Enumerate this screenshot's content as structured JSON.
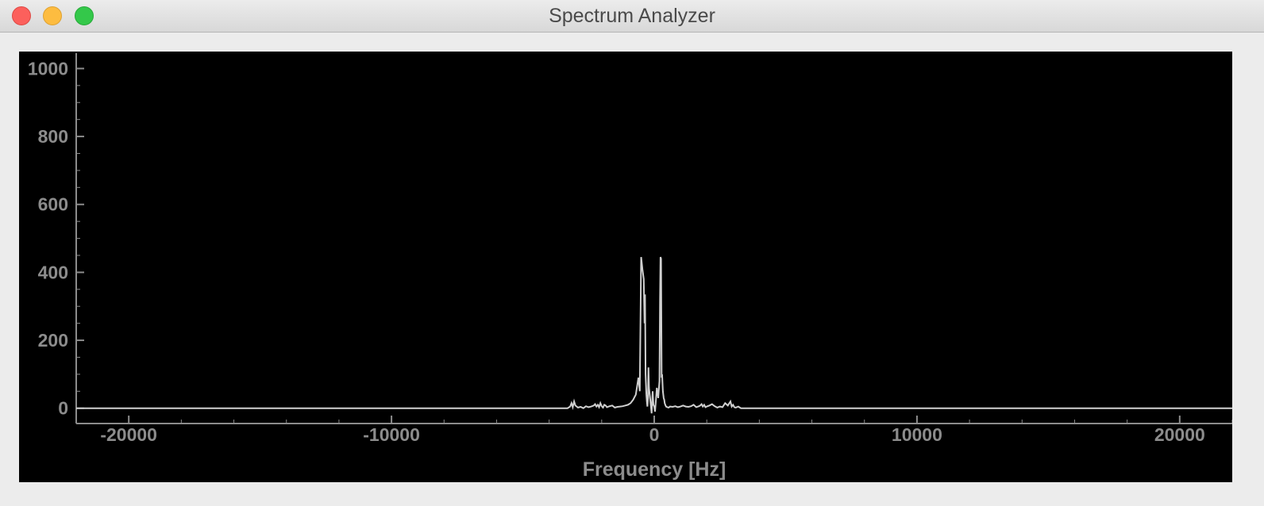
{
  "window": {
    "title": "Spectrum Analyzer"
  },
  "chart_data": {
    "type": "line",
    "xlabel": "Frequency [Hz]",
    "ylabel": "",
    "xlim": [
      -22000,
      22000
    ],
    "ylim": [
      -45,
      1050
    ],
    "xticks": [
      -20000,
      -10000,
      0,
      10000,
      20000
    ],
    "xtick_labels": [
      "-20000",
      "-10000",
      "0",
      "10000",
      "20000"
    ],
    "yticks": [
      0,
      200,
      400,
      600,
      800,
      1000
    ],
    "ytick_labels": [
      "0",
      "200",
      "400",
      "600",
      "800",
      "1000"
    ],
    "grid": false,
    "colors": {
      "background": "#000000",
      "axis": "#8c8c8c",
      "trace": "#d0d0d0"
    },
    "series": [
      {
        "x": [
          -22000,
          -3300,
          -3200,
          -3150,
          -3100,
          -3050,
          -3000,
          -2950,
          -2900,
          -2800,
          -2700,
          -2600,
          -2500,
          -2400,
          -2300,
          -2250,
          -2200,
          -2150,
          -2100,
          -2050,
          -2000,
          -1950,
          -1900,
          -1850,
          -1800,
          -1700,
          -1600,
          -1500,
          -1400,
          -1300,
          -1200,
          -1100,
          -1000,
          -900,
          -800,
          -700,
          -600,
          -550,
          -500,
          -450,
          -400,
          -370,
          -350,
          -330,
          -300,
          -280,
          -260,
          -240,
          -220,
          -200,
          -150,
          -100,
          -60,
          -30,
          0,
          30,
          60,
          100,
          150,
          200,
          220,
          240,
          260,
          280,
          300,
          330,
          360,
          380,
          400,
          420,
          450,
          500,
          550,
          600,
          700,
          800,
          900,
          1000,
          1100,
          1200,
          1300,
          1400,
          1500,
          1600,
          1700,
          1750,
          1800,
          1850,
          1900,
          1950,
          2000,
          2100,
          2200,
          2300,
          2400,
          2500,
          2600,
          2700,
          2800,
          2900,
          2950,
          3000,
          3050,
          3100,
          3200,
          3300,
          22000
        ],
        "y": [
          0,
          0,
          5,
          15,
          3,
          20,
          8,
          5,
          2,
          4,
          0,
          6,
          3,
          5,
          8,
          12,
          5,
          10,
          3,
          15,
          6,
          2,
          10,
          8,
          3,
          6,
          8,
          2,
          4,
          5,
          6,
          8,
          10,
          15,
          25,
          40,
          90,
          50,
          445,
          410,
          380,
          250,
          335,
          100,
          40,
          20,
          5,
          30,
          120,
          60,
          25,
          -15,
          50,
          10,
          5,
          -10,
          20,
          60,
          30,
          80,
          320,
          445,
          440,
          90,
          100,
          50,
          30,
          25,
          15,
          10,
          5,
          3,
          2,
          5,
          4,
          6,
          3,
          5,
          8,
          5,
          4,
          6,
          10,
          3,
          6,
          8,
          12,
          5,
          10,
          3,
          5,
          8,
          12,
          6,
          2,
          5,
          3,
          15,
          8,
          20,
          5,
          10,
          3,
          2,
          5,
          0,
          0
        ]
      }
    ]
  }
}
